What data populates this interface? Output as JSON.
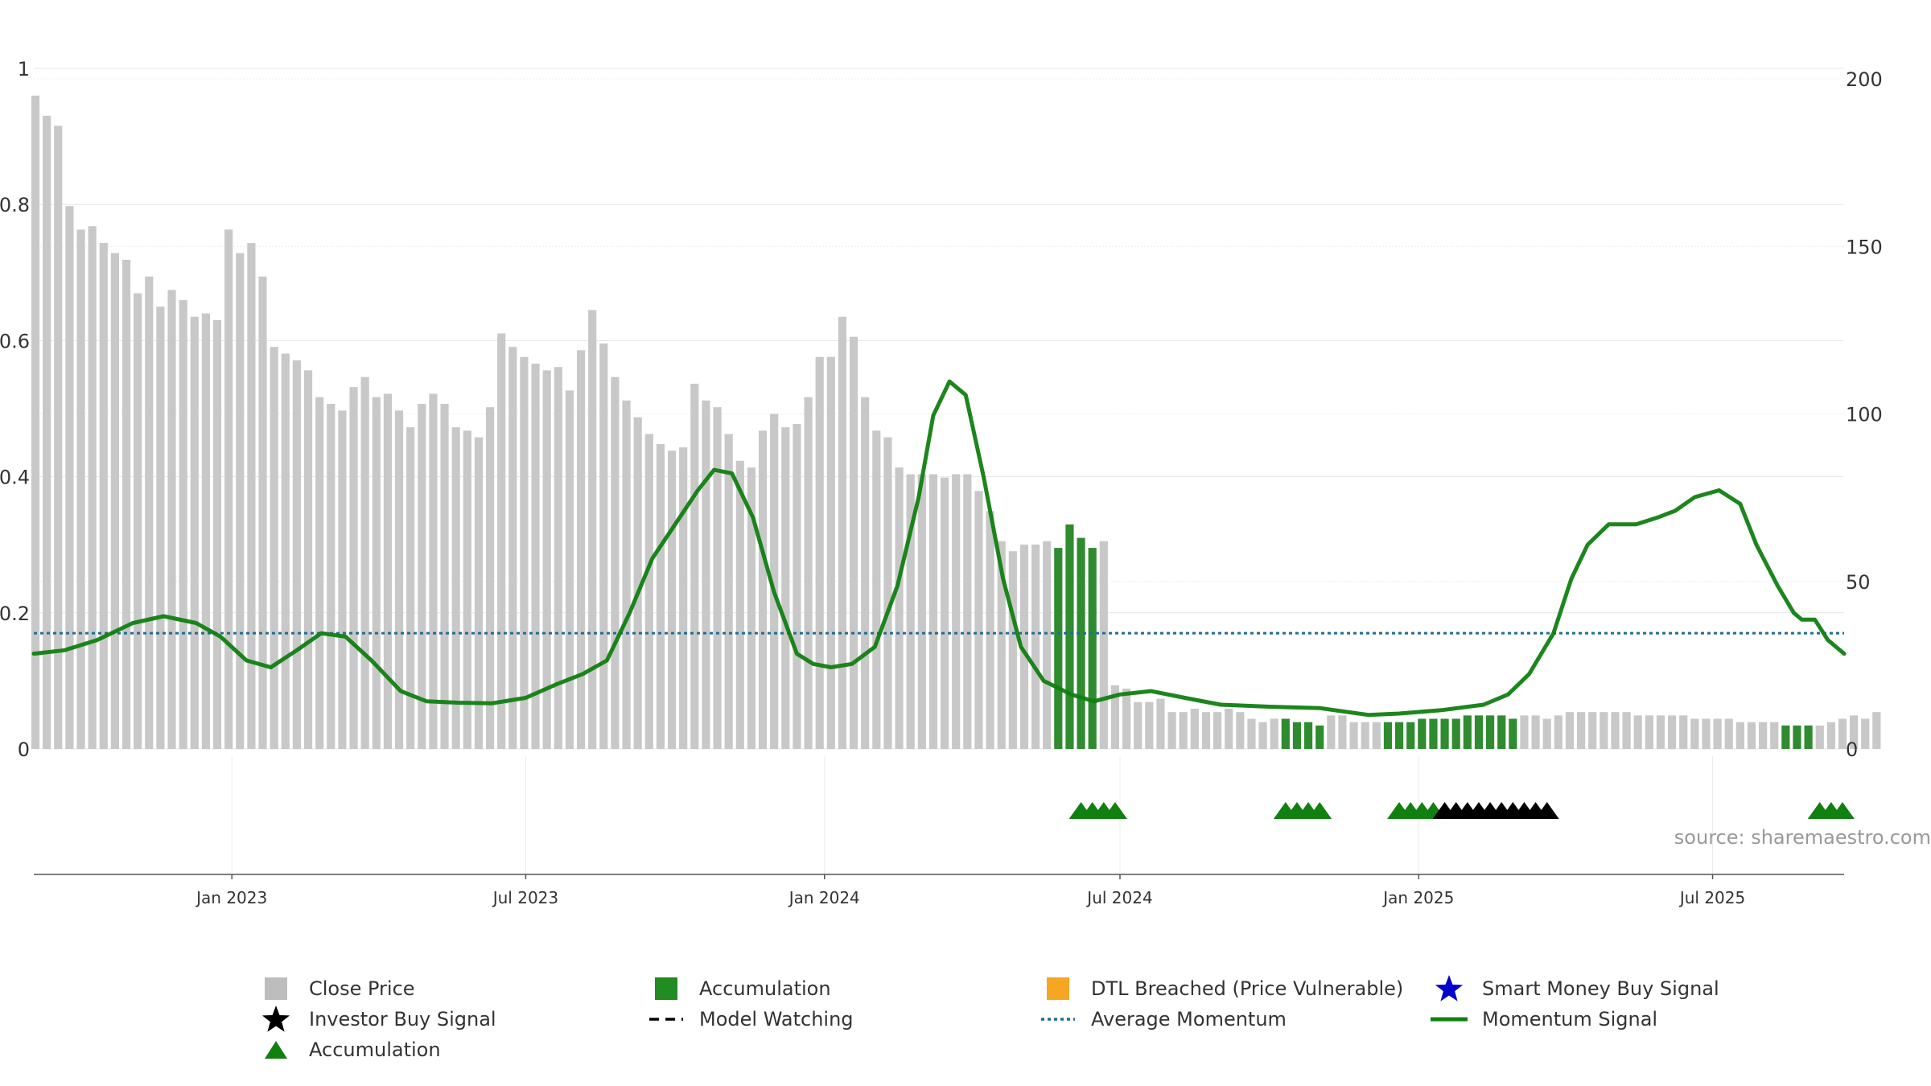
{
  "chart_data": {
    "type": "bar+line",
    "source": "source: sharemaestro.com",
    "left_axis": {
      "range": [
        0,
        1
      ],
      "ticks": [
        0,
        0.2,
        0.4,
        0.6,
        0.8,
        1
      ],
      "tick_labels": [
        "0",
        "0.2",
        "0.4",
        "0.6",
        "0.8",
        "1"
      ]
    },
    "right_axis": {
      "range": [
        0,
        200
      ],
      "ticks": [
        0,
        50,
        100,
        150,
        200
      ],
      "tick_labels": [
        "0",
        "50",
        "100",
        "150",
        "200"
      ]
    },
    "x_axis": {
      "start": "2022-09-01",
      "end": "2025-09-20",
      "ticks": [
        {
          "date": "2023-01-01",
          "label": "Jan 2023"
        },
        {
          "date": "2023-07-01",
          "label": "Jul 2023"
        },
        {
          "date": "2024-01-01",
          "label": "Jan 2024"
        },
        {
          "date": "2024-07-01",
          "label": "Jul 2024"
        },
        {
          "date": "2025-01-01",
          "label": "Jan 2025"
        },
        {
          "date": "2025-07-01",
          "label": "Jul 2025"
        }
      ]
    },
    "grid": true,
    "close_price_weekly": {
      "start": "2022-09-02",
      "values": [
        195,
        189,
        186,
        162,
        155,
        156,
        151,
        148,
        146,
        136,
        141,
        132,
        137,
        134,
        129,
        130,
        128,
        155,
        148,
        151,
        141,
        120,
        118,
        116,
        113,
        105,
        103,
        101,
        108,
        111,
        105,
        106,
        101,
        96,
        103,
        106,
        103,
        96,
        95,
        93,
        102,
        124,
        120,
        117,
        115,
        113,
        114,
        107,
        119,
        131,
        121,
        111,
        104,
        99,
        94,
        91,
        89,
        90,
        109,
        104,
        102,
        94,
        86,
        84,
        95,
        100,
        96,
        97,
        105,
        117,
        117,
        129,
        123,
        105,
        95,
        93,
        84,
        82,
        82,
        82,
        81,
        82,
        82,
        77,
        71,
        62,
        59,
        61,
        61,
        62,
        60,
        67,
        63,
        60,
        62,
        19,
        18,
        14,
        14,
        15,
        11,
        11,
        12,
        11,
        11,
        12,
        11,
        9,
        8,
        9,
        9,
        8,
        8,
        7,
        10,
        10,
        8,
        8,
        8,
        8,
        8,
        8,
        9,
        9,
        9,
        9,
        10,
        10,
        10,
        10,
        9,
        10,
        10,
        9,
        10,
        11,
        11,
        11,
        11,
        11,
        11,
        10,
        10,
        10,
        10,
        10,
        9,
        9,
        9,
        9,
        8,
        8,
        8,
        8,
        7,
        7,
        7,
        7,
        8,
        9,
        10,
        9,
        11
      ]
    },
    "accumulation_weeks": [
      90,
      91,
      92,
      93,
      110,
      111,
      112,
      113,
      119,
      120,
      121,
      122,
      123,
      124,
      125,
      126,
      127,
      128,
      129,
      130,
      154,
      155,
      156
    ],
    "accumulation_triangles": [
      "2024-06-07",
      "2024-06-14",
      "2024-06-21",
      "2024-06-28",
      "2024-10-11",
      "2024-10-18",
      "2024-10-25",
      "2024-11-01",
      "2024-12-20",
      "2024-12-27",
      "2025-01-03",
      "2025-01-10",
      "2025-09-05",
      "2025-09-12",
      "2025-09-19"
    ],
    "investor_buy_signals": [
      "2025-01-17",
      "2025-01-24",
      "2025-01-31",
      "2025-02-07",
      "2025-02-14",
      "2025-02-21",
      "2025-02-28",
      "2025-03-07",
      "2025-03-14",
      "2025-03-21"
    ],
    "average_momentum": 0.17,
    "momentum_signal": {
      "dates": [
        "2022-09-01",
        "2022-09-20",
        "2022-10-10",
        "2022-11-01",
        "2022-11-20",
        "2022-12-10",
        "2022-12-25",
        "2023-01-10",
        "2023-01-25",
        "2023-02-10",
        "2023-02-25",
        "2023-03-12",
        "2023-03-28",
        "2023-04-15",
        "2023-05-01",
        "2023-05-20",
        "2023-06-10",
        "2023-07-01",
        "2023-07-20",
        "2023-08-05",
        "2023-08-20",
        "2023-09-03",
        "2023-09-17",
        "2023-10-01",
        "2023-10-15",
        "2023-10-25",
        "2023-11-05",
        "2023-11-18",
        "2023-12-01",
        "2023-12-15",
        "2023-12-25",
        "2024-01-05",
        "2024-01-18",
        "2024-02-01",
        "2024-02-15",
        "2024-02-28",
        "2024-03-08",
        "2024-03-18",
        "2024-03-28",
        "2024-04-08",
        "2024-04-20",
        "2024-05-01",
        "2024-05-15",
        "2024-06-01",
        "2024-06-15",
        "2024-07-01",
        "2024-07-20",
        "2024-08-10",
        "2024-09-01",
        "2024-10-01",
        "2024-11-01",
        "2024-12-01",
        "2024-12-20",
        "2025-01-15",
        "2025-02-10",
        "2025-02-25",
        "2025-03-10",
        "2025-03-25",
        "2025-04-05",
        "2025-04-15",
        "2025-04-28",
        "2025-05-15",
        "2025-05-28",
        "2025-06-08",
        "2025-06-20",
        "2025-07-05",
        "2025-07-18",
        "2025-07-28",
        "2025-08-10",
        "2025-08-20",
        "2025-08-25",
        "2025-09-02",
        "2025-09-10",
        "2025-09-20"
      ],
      "values": [
        0.14,
        0.145,
        0.16,
        0.185,
        0.195,
        0.185,
        0.165,
        0.13,
        0.12,
        0.145,
        0.17,
        0.165,
        0.13,
        0.085,
        0.07,
        0.068,
        0.067,
        0.075,
        0.095,
        0.11,
        0.13,
        0.2,
        0.28,
        0.33,
        0.38,
        0.41,
        0.405,
        0.34,
        0.23,
        0.14,
        0.125,
        0.12,
        0.125,
        0.15,
        0.24,
        0.37,
        0.49,
        0.54,
        0.52,
        0.4,
        0.25,
        0.15,
        0.1,
        0.08,
        0.07,
        0.08,
        0.085,
        0.075,
        0.065,
        0.062,
        0.06,
        0.05,
        0.052,
        0.057,
        0.065,
        0.08,
        0.11,
        0.17,
        0.25,
        0.3,
        0.33,
        0.33,
        0.34,
        0.35,
        0.37,
        0.38,
        0.36,
        0.3,
        0.24,
        0.2,
        0.19,
        0.19,
        0.16,
        0.14
      ]
    },
    "legend": [
      {
        "label": "Close Price",
        "color": "#bdbdbd",
        "symbol": "square"
      },
      {
        "label": "Accumulation",
        "color": "#228b22",
        "symbol": "square"
      },
      {
        "label": "DTL Breached (Price Vulnerable)",
        "color": "#f5a623",
        "symbol": "square"
      },
      {
        "label": "Smart Money Buy Signal",
        "color": "#0000cc",
        "symbol": "star"
      },
      {
        "label": "Investor Buy Signal",
        "color": "#000000",
        "symbol": "star"
      },
      {
        "label": "Model Watching",
        "color": "#000000",
        "symbol": "dash"
      },
      {
        "label": "Average Momentum",
        "color": "#1f6d94",
        "symbol": "dotted"
      },
      {
        "label": "Momentum Signal",
        "color": "#108010",
        "symbol": "line"
      },
      {
        "label": "Accumulation",
        "color": "#108010",
        "symbol": "triangle"
      }
    ],
    "colors": {
      "close_price": "#c8c8c8",
      "accumulation_bar": "#2e8b2e",
      "accumulation_triangle": "#108010",
      "momentum": "#108010",
      "average_momentum": "#1f6d94",
      "investor_signal": "#000000"
    }
  }
}
